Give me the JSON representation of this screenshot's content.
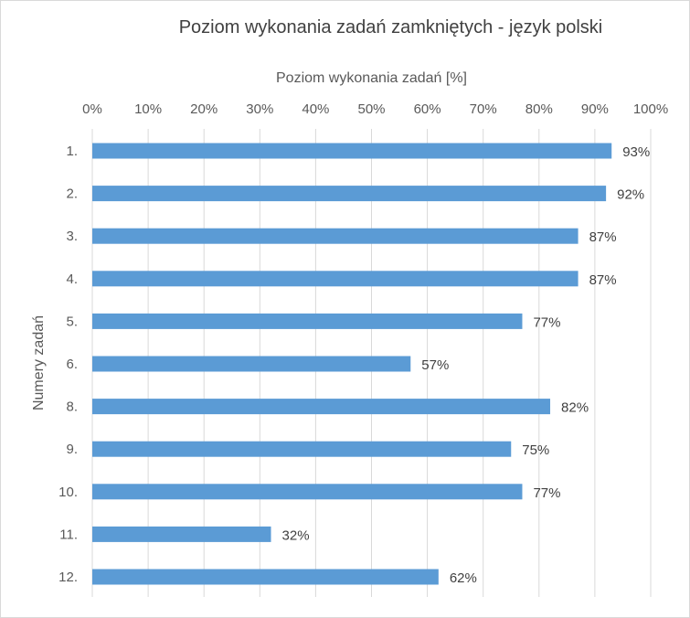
{
  "chart_data": {
    "type": "bar",
    "orientation": "horizontal",
    "title": "Poziom wykonania zadań zamkniętych - język polski",
    "xlabel": "Poziom wykonania zadań [%]",
    "ylabel": "Numery zadań",
    "categories": [
      "1.",
      "2.",
      "3.",
      "4.",
      "5.",
      "6.",
      "8.",
      "9.",
      "10.",
      "11.",
      "12."
    ],
    "values": [
      93,
      92,
      87,
      87,
      77,
      57,
      82,
      75,
      77,
      32,
      62
    ],
    "value_labels": [
      "93%",
      "92%",
      "87%",
      "87%",
      "77%",
      "57%",
      "82%",
      "75%",
      "77%",
      "32%",
      "62%"
    ],
    "xlim": [
      0,
      100
    ],
    "x_ticks": [
      "0%",
      "10%",
      "20%",
      "30%",
      "40%",
      "50%",
      "60%",
      "70%",
      "80%",
      "90%",
      "100%"
    ],
    "x_axis_position": "top",
    "grid": true,
    "legend": "none",
    "bar_color": "#5b9bd5",
    "grid_color": "#d9d9d9"
  }
}
